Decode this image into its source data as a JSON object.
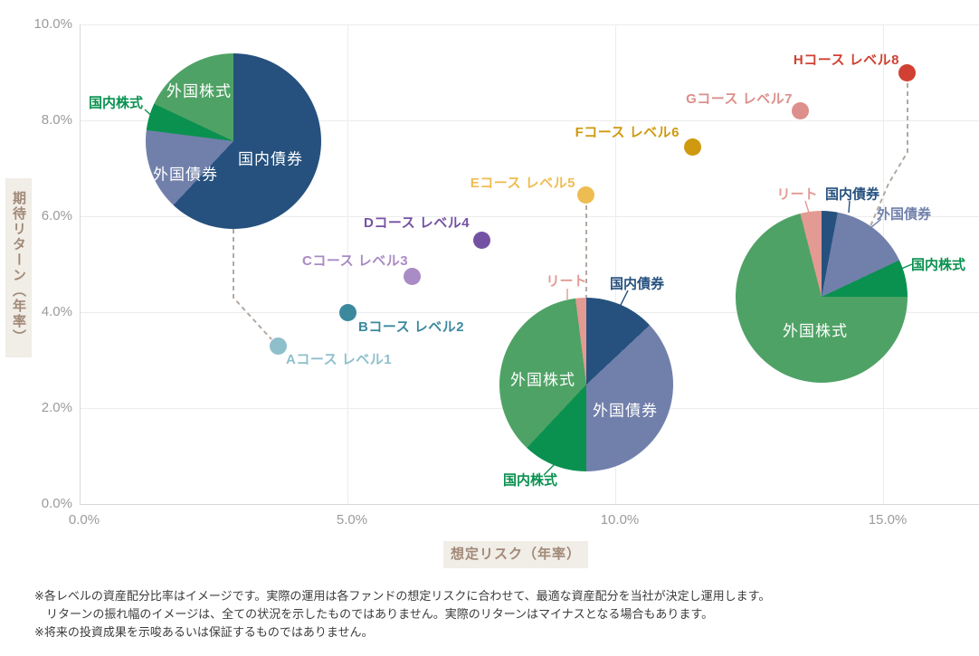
{
  "chart_data": {
    "type": "scatter",
    "title": "",
    "xlabel": "想定リスク（年率）",
    "ylabel": "期待リターン（年率）",
    "xlim": [
      0,
      16.9
    ],
    "ylim": [
      0,
      10
    ],
    "grid": true,
    "x_ticks": [
      {
        "value": 0,
        "label": "0.0%"
      },
      {
        "value": 5,
        "label": "5.0%"
      },
      {
        "value": 10,
        "label": "10.0%"
      },
      {
        "value": 15,
        "label": "15.0%"
      }
    ],
    "y_ticks": [
      {
        "value": 0,
        "label": "0.0%"
      },
      {
        "value": 2,
        "label": "2.0%"
      },
      {
        "value": 4,
        "label": "4.0%"
      },
      {
        "value": 6,
        "label": "6.0%"
      },
      {
        "value": 8,
        "label": "8.0%"
      },
      {
        "value": 10,
        "label": "10.0%"
      }
    ],
    "points": [
      {
        "label": "Aコース レベル1",
        "risk": 3.7,
        "return": 3.3,
        "color": "#8fbfcb"
      },
      {
        "label": "Bコース レベル2",
        "risk": 5.0,
        "return": 4.0,
        "color": "#3c899e"
      },
      {
        "label": "Cコース レベル3",
        "risk": 6.2,
        "return": 4.75,
        "color": "#a98bc5"
      },
      {
        "label": "Dコース レベル4",
        "risk": 7.5,
        "return": 5.5,
        "color": "#7452a3"
      },
      {
        "label": "Eコース レベル5",
        "risk": 9.45,
        "return": 6.45,
        "color": "#eebd52"
      },
      {
        "label": "Fコース レベル6",
        "risk": 11.45,
        "return": 7.45,
        "color": "#cf9a0f"
      },
      {
        "label": "Gコース レベル7",
        "risk": 13.45,
        "return": 8.2,
        "color": "#dc8f8b"
      },
      {
        "label": "Hコース レベル8",
        "risk": 15.45,
        "return": 9.0,
        "color": "#d04133"
      }
    ],
    "asset_colors": {
      "国内債券": "#26517e",
      "外国債券": "#7180ab",
      "国内株式": "#0a9150",
      "外国株式": "#4fa265",
      "リート": "#e29a92"
    },
    "pies": [
      {
        "course": "Aコース レベル1",
        "slices": [
          {
            "asset": "国内債券",
            "pct": 62
          },
          {
            "asset": "外国債券",
            "pct": 15
          },
          {
            "asset": "国内株式",
            "pct": 5
          },
          {
            "asset": "外国株式",
            "pct": 18
          }
        ]
      },
      {
        "course": "Eコース レベル5",
        "slices": [
          {
            "asset": "国内債券",
            "pct": 13
          },
          {
            "asset": "外国債券",
            "pct": 37
          },
          {
            "asset": "国内株式",
            "pct": 12
          },
          {
            "asset": "外国株式",
            "pct": 36
          },
          {
            "asset": "リート",
            "pct": 2
          }
        ]
      },
      {
        "course": "Hコース レベル8",
        "slices": [
          {
            "asset": "国内債券",
            "pct": 3
          },
          {
            "asset": "外国債券",
            "pct": 15
          },
          {
            "asset": "国内株式",
            "pct": 7
          },
          {
            "asset": "外国株式",
            "pct": 71
          },
          {
            "asset": "リート",
            "pct": 4
          }
        ]
      }
    ]
  },
  "style": {
    "grid_color": "#ececec",
    "axis_color": "#d8d8d8",
    "tick_color": "#9b9b9b",
    "axis_title_color": "#a18977",
    "axis_title_bg": "#f1ede7",
    "connector_color": "#b3a9a1",
    "footnote_color": "#3b3b3b"
  },
  "footnotes": [
    "※各レベルの資産配分比率はイメージです。実際の運用は各ファンドの想定リスクに合わせて、最適な資産配分を当社が決定し運用します。",
    "　リターンの振れ幅のイメージは、全ての状況を示したものではありません。実際のリターンはマイナスとなる場合もあります。",
    "※将来の投資成果を示唆あるいは保証するものではありません。"
  ]
}
